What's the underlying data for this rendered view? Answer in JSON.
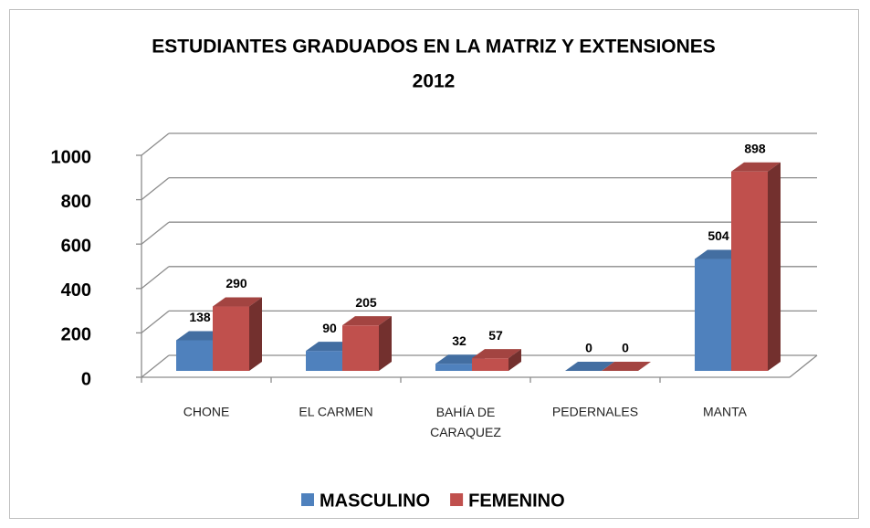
{
  "chart_data": {
    "type": "bar3d",
    "title": [
      "ESTUDIANTES GRADUADOS  EN LA MATRIZ Y EXTENSIONES",
      "2012"
    ],
    "categories": [
      "CHONE",
      "EL CARMEN",
      "BAHÍA DE CARAQUEZ",
      "PEDERNALES",
      "MANTA"
    ],
    "series": [
      {
        "name": "MASCULINO",
        "color": "#4f81bd",
        "values": [
          138,
          90,
          32,
          0,
          504
        ]
      },
      {
        "name": "FEMENINO",
        "color": "#c0504d",
        "values": [
          290,
          205,
          57,
          0,
          898
        ]
      }
    ],
    "ylim": [
      0,
      1000
    ],
    "yticks": [
      0,
      200,
      400,
      600,
      800,
      1000
    ],
    "grid": true,
    "legend": "bottom"
  }
}
